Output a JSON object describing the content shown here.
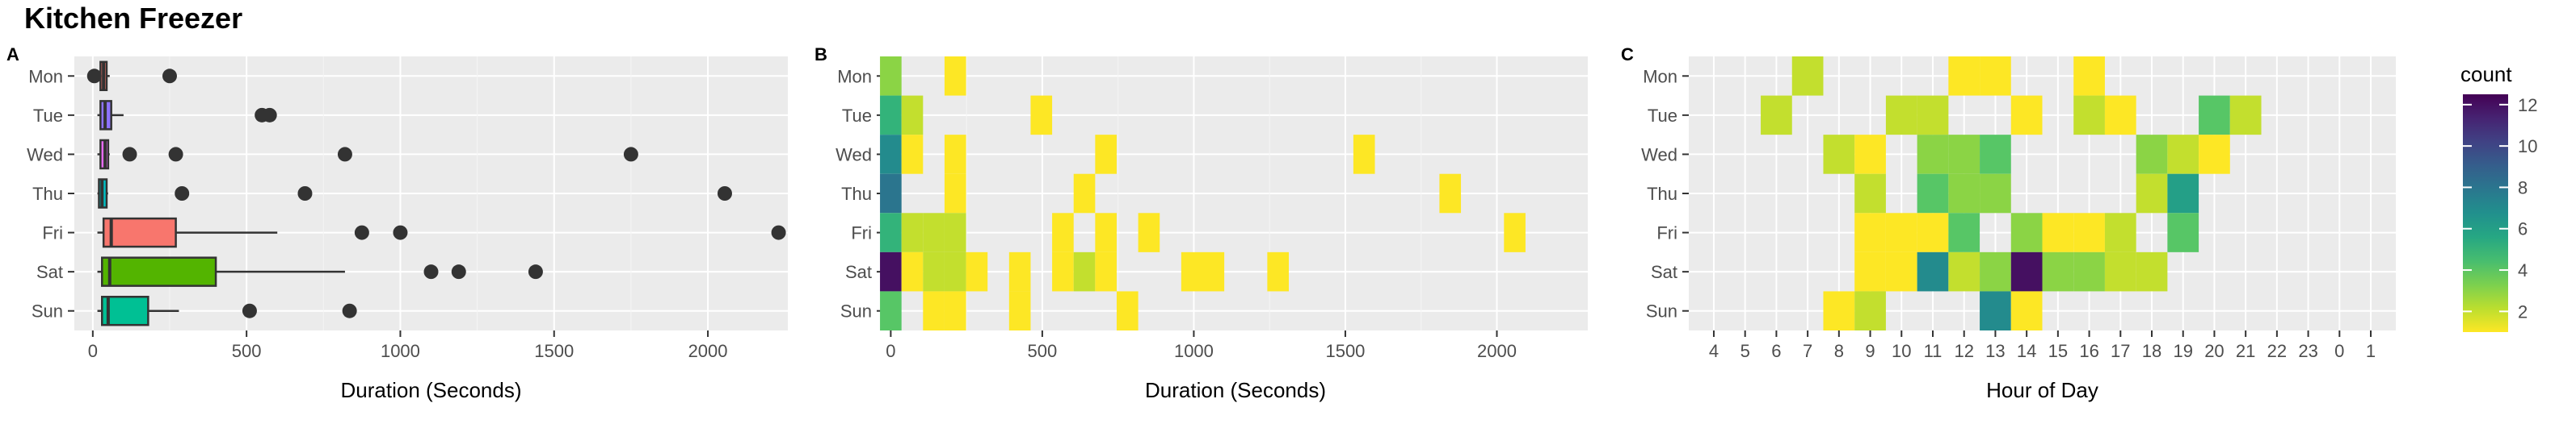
{
  "title": "Kitchen Freezer",
  "days": [
    "Mon",
    "Tue",
    "Wed",
    "Thu",
    "Fri",
    "Sat",
    "Sun"
  ],
  "chart_data": [
    {
      "panel": "A",
      "type": "box",
      "xlabel": "Duration (Seconds)",
      "xlim": [
        -60,
        2260
      ],
      "xticks": [
        0,
        500,
        1000,
        1500,
        2000
      ],
      "grid": true,
      "boxes": [
        {
          "day": "Mon",
          "q1": 25,
          "median": 35,
          "q3": 45,
          "whisker_low": 15,
          "whisker_high": 55,
          "outliers": [
            5,
            250
          ],
          "color": "#F8766D"
        },
        {
          "day": "Tue",
          "q1": 25,
          "median": 40,
          "q3": 60,
          "whisker_low": 15,
          "whisker_high": 100,
          "outliers": [
            550,
            575
          ],
          "color": "#8E73FF"
        },
        {
          "day": "Wed",
          "q1": 25,
          "median": 40,
          "q3": 50,
          "whisker_low": 15,
          "whisker_high": 55,
          "outliers": [
            120,
            270,
            820,
            1750
          ],
          "color": "#E76BF3"
        },
        {
          "day": "Thu",
          "q1": 20,
          "median": 30,
          "q3": 45,
          "whisker_low": 15,
          "whisker_high": 50,
          "outliers": [
            290,
            690,
            2055
          ],
          "color": "#00BFC4"
        },
        {
          "day": "Fri",
          "q1": 35,
          "median": 60,
          "q3": 270,
          "whisker_low": 15,
          "whisker_high": 600,
          "outliers": [
            875,
            1000,
            2230
          ],
          "color": "#F8766D"
        },
        {
          "day": "Sat",
          "q1": 30,
          "median": 55,
          "q3": 400,
          "whisker_low": 15,
          "whisker_high": 820,
          "outliers": [
            1100,
            1190,
            1440
          ],
          "color": "#53B400"
        },
        {
          "day": "Sun",
          "q1": 30,
          "median": 50,
          "q3": 180,
          "whisker_low": 15,
          "whisker_high": 280,
          "outliers": [
            510,
            835
          ],
          "color": "#00C094"
        }
      ]
    },
    {
      "panel": "B",
      "type": "heatmap",
      "xlabel": "Duration (Seconds)",
      "xlim": [
        -25,
        2300
      ],
      "xticks": [
        0,
        500,
        1000,
        1500,
        2000
      ],
      "bin_width": 71,
      "grid": true,
      "cells": {
        "Mon": [
          [
            0,
            3
          ],
          [
            3,
            1
          ]
        ],
        "Tue": [
          [
            0,
            5
          ],
          [
            1,
            2
          ],
          [
            7,
            1
          ]
        ],
        "Wed": [
          [
            0,
            7
          ],
          [
            1,
            1
          ],
          [
            3,
            1
          ],
          [
            10,
            1
          ],
          [
            22,
            1
          ]
        ],
        "Thu": [
          [
            0,
            8
          ],
          [
            3,
            1
          ],
          [
            9,
            1
          ],
          [
            26,
            1
          ]
        ],
        "Fri": [
          [
            0,
            5
          ],
          [
            1,
            2
          ],
          [
            2,
            2
          ],
          [
            3,
            2
          ],
          [
            8,
            1
          ],
          [
            10,
            1
          ],
          [
            12,
            1
          ],
          [
            29,
            1
          ]
        ],
        "Sat": [
          [
            0,
            12
          ],
          [
            1,
            1
          ],
          [
            2,
            2
          ],
          [
            3,
            2
          ],
          [
            4,
            1
          ],
          [
            6,
            1
          ],
          [
            8,
            1
          ],
          [
            9,
            2
          ],
          [
            10,
            1
          ],
          [
            14,
            1
          ],
          [
            15,
            1
          ],
          [
            18,
            1
          ]
        ],
        "Sun": [
          [
            0,
            4
          ],
          [
            2,
            1
          ],
          [
            3,
            1
          ],
          [
            6,
            1
          ],
          [
            11,
            1
          ]
        ]
      }
    },
    {
      "panel": "C",
      "type": "heatmap",
      "xlabel": "Hour of Day",
      "hours": [
        "4",
        "5",
        "6",
        "7",
        "8",
        "9",
        "10",
        "11",
        "12",
        "13",
        "14",
        "15",
        "16",
        "17",
        "18",
        "19",
        "20",
        "21",
        "22",
        "23",
        "0",
        "1"
      ],
      "grid": true,
      "cells": {
        "Mon": [
          [
            3,
            2
          ],
          [
            8,
            1
          ],
          [
            9,
            1
          ],
          [
            12,
            1
          ]
        ],
        "Tue": [
          [
            2,
            2
          ],
          [
            6,
            2
          ],
          [
            7,
            2
          ],
          [
            10,
            1
          ],
          [
            12,
            2
          ],
          [
            13,
            1
          ],
          [
            16,
            4
          ],
          [
            17,
            2
          ]
        ],
        "Wed": [
          [
            4,
            2
          ],
          [
            5,
            1
          ],
          [
            7,
            3
          ],
          [
            8,
            3
          ],
          [
            9,
            4
          ],
          [
            14,
            3
          ],
          [
            15,
            2
          ],
          [
            16,
            1
          ]
        ],
        "Thu": [
          [
            5,
            2
          ],
          [
            7,
            4
          ],
          [
            8,
            3
          ],
          [
            9,
            3
          ],
          [
            14,
            2
          ],
          [
            15,
            6
          ]
        ],
        "Fri": [
          [
            5,
            1
          ],
          [
            6,
            1
          ],
          [
            7,
            1
          ],
          [
            8,
            4
          ],
          [
            10,
            3
          ],
          [
            11,
            1
          ],
          [
            12,
            1
          ],
          [
            13,
            2
          ],
          [
            15,
            4
          ]
        ],
        "Sat": [
          [
            5,
            1
          ],
          [
            6,
            1
          ],
          [
            7,
            7
          ],
          [
            8,
            2
          ],
          [
            9,
            3
          ],
          [
            10,
            12
          ],
          [
            11,
            3
          ],
          [
            12,
            3
          ],
          [
            13,
            2
          ],
          [
            14,
            2
          ]
        ],
        "Sun": [
          [
            4,
            1
          ],
          [
            5,
            2
          ],
          [
            9,
            7
          ],
          [
            10,
            1
          ]
        ]
      },
      "legend": {
        "title": "count",
        "min": 1,
        "max": 12.5,
        "ticks": [
          2,
          4,
          6,
          8,
          10,
          12
        ],
        "position": "right"
      }
    }
  ]
}
